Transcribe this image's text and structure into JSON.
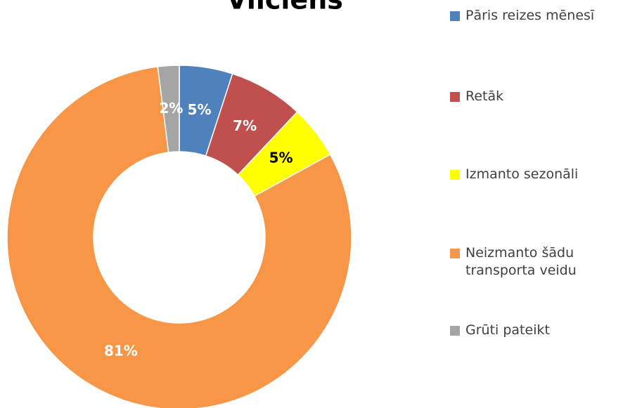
{
  "chart_data": {
    "type": "donut",
    "title": "Vilciens",
    "categories": [
      "Pāris reizes mēnesī",
      "Retāk",
      "Izmanto sezonāli",
      "Neizmanto šādu transporta veidu",
      "Grūti pateikt"
    ],
    "values": [
      5,
      7,
      5,
      81,
      2
    ],
    "value_labels": [
      "5%",
      "7%",
      "5%",
      "81%",
      "2%"
    ],
    "colors": [
      "#4f81bd",
      "#c0504d",
      "#ffff00",
      "#f79646",
      "#a5a5a5"
    ],
    "legend": "right"
  }
}
